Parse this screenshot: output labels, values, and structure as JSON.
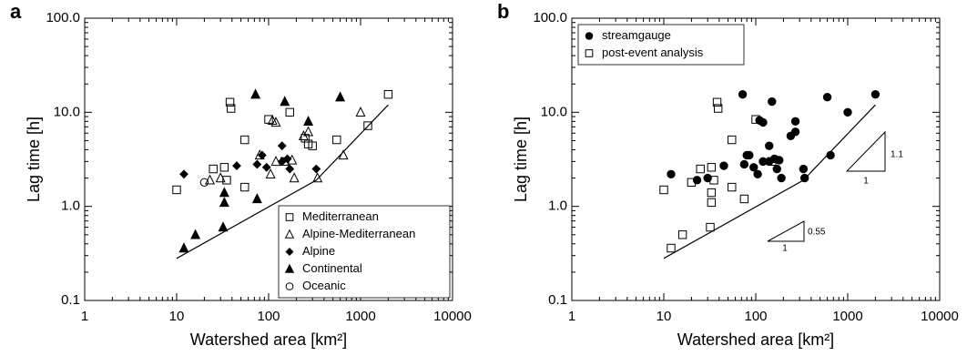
{
  "chart_data": [
    {
      "type": "scatter",
      "panel_label": "a",
      "x_label": "Watershed area [km²]",
      "y_label": "Lag time [h]",
      "xscale": "log",
      "yscale": "log",
      "xlim": [
        1,
        10000
      ],
      "ylim": [
        0.1,
        100
      ],
      "xticks": [
        1,
        10,
        100,
        1000,
        10000
      ],
      "yticks": [
        0.1,
        {
          "value": 1,
          "label": "1.0"
        },
        {
          "value": 10,
          "label": "10.0"
        },
        {
          "value": 100,
          "label": "100.0"
        }
      ],
      "legend": "lower right",
      "series": [
        {
          "name": "Mediterranean",
          "color": "#000000",
          "marker": "square-open",
          "x": [
            10,
            25,
            33,
            38,
            39,
            55,
            55,
            100,
            170,
            150,
            270,
            300,
            250,
            550,
            1200,
            2000,
            35
          ],
          "y": [
            1.5,
            2.5,
            2.6,
            12.8,
            11,
            5.1,
            1.6,
            8.4,
            10,
            3,
            4.6,
            4.4,
            5.3,
            5.1,
            7.2,
            15.5,
            1.9
          ]
        },
        {
          "name": "Alpine-Mediterranean",
          "color": "#000000",
          "marker": "triangle-open",
          "x": [
            23,
            30,
            80,
            110,
            120,
            180,
            190,
            240,
            270,
            120,
            340,
            650,
            1000,
            105
          ],
          "y": [
            1.9,
            2,
            3.5,
            8.2,
            7.8,
            3.1,
            2,
            5.6,
            6.2,
            3,
            2,
            3.5,
            10,
            2.2
          ]
        },
        {
          "name": "Alpine",
          "color": "#000000",
          "marker": "diamond-filled",
          "x": [
            12,
            45,
            75,
            85,
            95,
            140,
            160,
            170,
            330,
            140
          ],
          "y": [
            2.2,
            2.7,
            2.8,
            3.5,
            2.6,
            4.4,
            3.2,
            2.5,
            2.5,
            3
          ]
        },
        {
          "name": "Continental",
          "color": "#000000",
          "marker": "triangle-filled",
          "x": [
            12,
            16,
            32,
            33,
            33,
            72,
            75,
            150,
            270,
            600
          ],
          "y": [
            0.36,
            0.5,
            0.6,
            1.1,
            1.4,
            15.5,
            1.2,
            13,
            8,
            14.5
          ]
        },
        {
          "name": "Oceanic",
          "color": "#000000",
          "marker": "circle-open",
          "x": [
            20
          ],
          "y": [
            1.8
          ]
        }
      ],
      "lines": [
        {
          "color": "#000000",
          "x": [
            10,
            330,
            2000
          ],
          "y": [
            0.28,
            1.9,
            12
          ]
        }
      ]
    },
    {
      "type": "scatter",
      "panel_label": "b",
      "x_label": "Watershed area [km²]",
      "y_label": "Lag time [h]",
      "xscale": "log",
      "yscale": "log",
      "xlim": [
        1,
        10000
      ],
      "ylim": [
        0.1,
        100
      ],
      "xticks": [
        1,
        10,
        100,
        1000,
        10000
      ],
      "yticks": [
        0.1,
        {
          "value": 1,
          "label": "1.0"
        },
        {
          "value": 10,
          "label": "10.0"
        },
        {
          "value": 100,
          "label": "100.0"
        }
      ],
      "legend": "upper left",
      "series": [
        {
          "name": "streamgauge",
          "color": "#000000",
          "marker": "circle-filled",
          "x": [
            23,
            30,
            80,
            110,
            120,
            180,
            190,
            240,
            270,
            120,
            340,
            650,
            1000,
            105,
            12,
            45,
            75,
            85,
            95,
            140,
            160,
            170,
            330,
            140,
            72,
            150,
            270,
            600,
            2000
          ],
          "y": [
            1.9,
            2,
            3.5,
            8.2,
            7.8,
            3.1,
            2,
            5.6,
            6.2,
            3,
            2,
            3.5,
            10,
            2.2,
            2.2,
            2.7,
            2.8,
            3.5,
            2.6,
            4.4,
            3.2,
            2.5,
            2.5,
            3,
            15.5,
            13,
            8,
            14.5,
            15.5
          ]
        },
        {
          "name": "post-event analysis",
          "color": "#000000",
          "marker": "square-open",
          "x": [
            10,
            25,
            33,
            38,
            39,
            55,
            55,
            100,
            150,
            12,
            16,
            32,
            33,
            33,
            75,
            20,
            35
          ],
          "y": [
            1.5,
            2.5,
            2.6,
            12.8,
            11,
            5.1,
            1.6,
            8.4,
            3,
            0.36,
            0.5,
            0.6,
            1.1,
            1.4,
            1.2,
            1.8,
            1.9
          ]
        }
      ],
      "lines": [
        {
          "color": "#000000",
          "x": [
            10,
            330,
            2000
          ],
          "y": [
            0.28,
            1.9,
            12
          ]
        }
      ],
      "annotations": [
        "1.1",
        "1",
        "0.55",
        "1"
      ]
    }
  ]
}
